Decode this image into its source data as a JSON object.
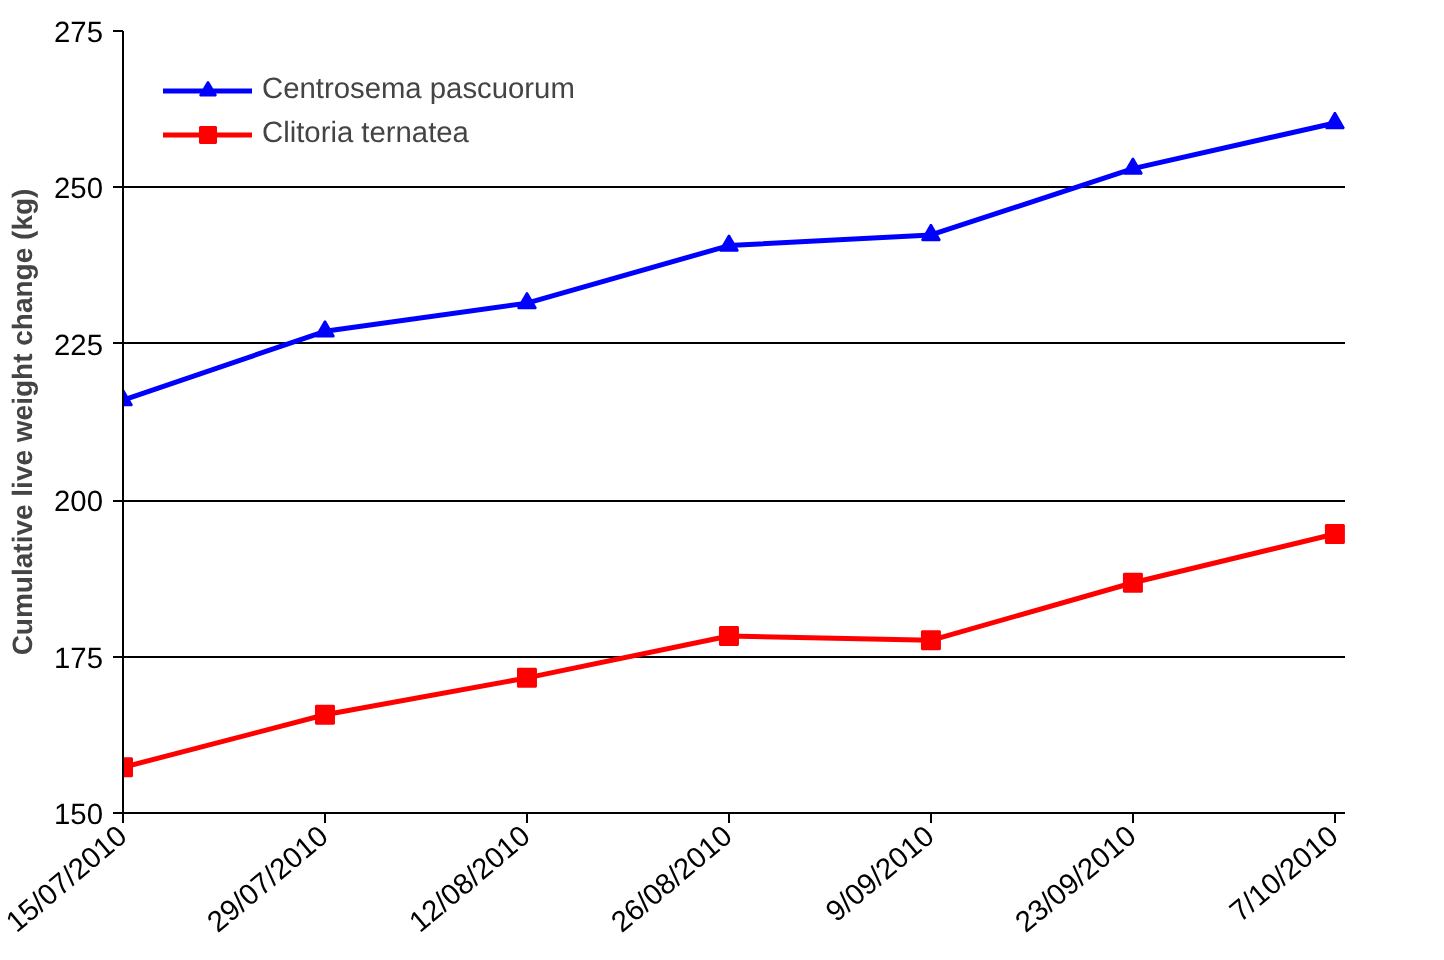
{
  "chart_data": {
    "type": "line",
    "ylabel": "Cumulative live weight change (kg)",
    "categories": [
      "15/07/2010",
      "29/07/2010",
      "12/08/2010",
      "26/08/2010",
      "9/09/2010",
      "23/09/2010",
      "7/10/2010"
    ],
    "series": [
      {
        "name": "Centrosema pascuorum",
        "color": "#0000ff",
        "marker": "triangle",
        "values": [
          216,
          227,
          231.5,
          240.7,
          242.4,
          253,
          260.3
        ]
      },
      {
        "name": "Clitoria ternatea",
        "color": "#ff0000",
        "marker": "square",
        "values": [
          157.3,
          165.7,
          171.6,
          178.3,
          177.6,
          186.8,
          194.6
        ]
      }
    ],
    "ylim": [
      150,
      275
    ],
    "yticks": [
      150,
      175,
      200,
      225,
      250,
      275
    ],
    "grid": "y",
    "legend": "top left",
    "line_style": "solid"
  }
}
